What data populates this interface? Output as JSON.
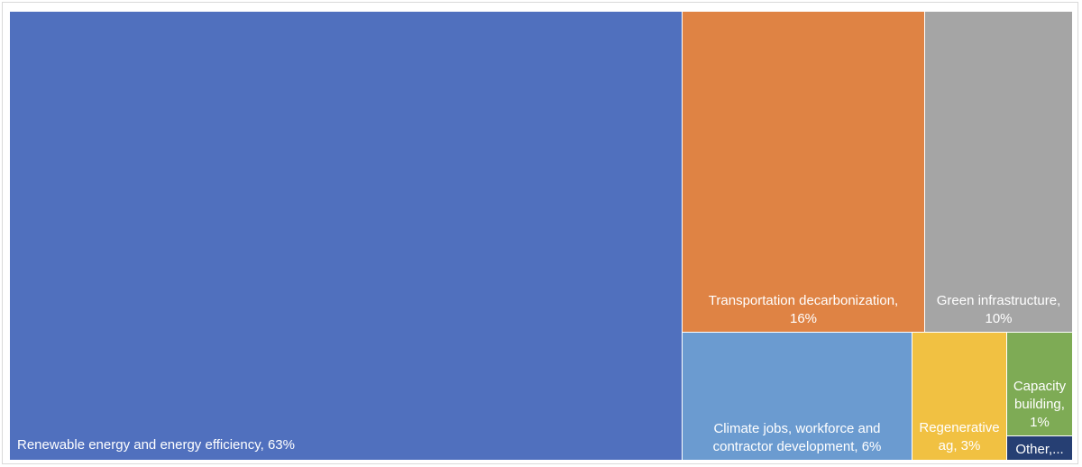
{
  "chart_data": {
    "type": "treemap",
    "title": "",
    "items": [
      {
        "label": "Renewable energy and energy efficiency",
        "value": 63,
        "display": [
          "Renewable energy and energy efficiency, 63%"
        ],
        "color": "#5070BE"
      },
      {
        "label": "Transportation decarbonization",
        "value": 16,
        "display": [
          "Transportation decarbonization,",
          "16%"
        ],
        "color": "#DF8344"
      },
      {
        "label": "Green infrastructure",
        "value": 10,
        "display": [
          "Green infrastructure,",
          "10%"
        ],
        "color": "#A5A5A5"
      },
      {
        "label": "Climate jobs, workforce and contractor development",
        "value": 6,
        "display": [
          "Climate jobs, workforce and",
          "contractor development, 6%"
        ],
        "color": "#6B9BD0"
      },
      {
        "label": "Regenerative ag",
        "value": 3,
        "display": [
          "Regenerative",
          "ag, 3%"
        ],
        "color": "#F1C142"
      },
      {
        "label": "Capacity building",
        "value": 1,
        "display": [
          "Capacity",
          "building,",
          "1%"
        ],
        "color": "#7EAB55"
      },
      {
        "label": "Other",
        "value": 1,
        "display": [
          "Other,..."
        ],
        "color": "#263F73"
      }
    ]
  }
}
